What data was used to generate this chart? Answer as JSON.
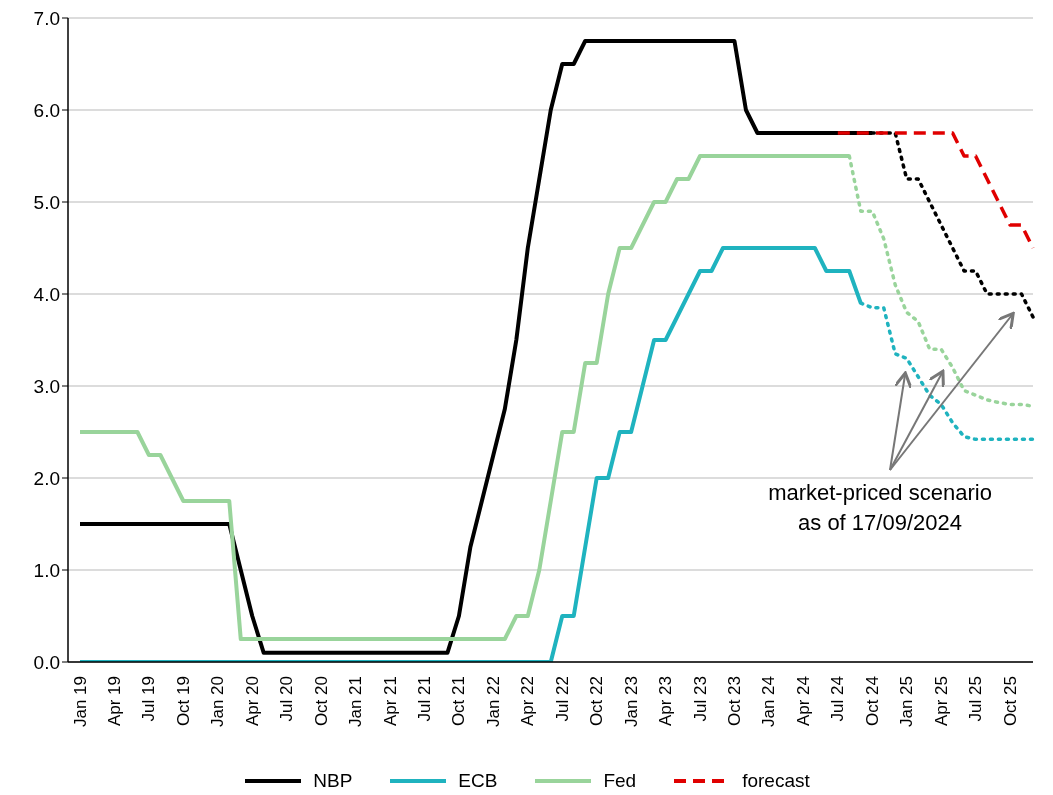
{
  "chart_data": {
    "type": "line",
    "categories": [
      "Jan 19",
      null,
      null,
      "Apr 19",
      null,
      null,
      "Jul 19",
      null,
      null,
      "Oct 19",
      null,
      null,
      "Jan 20",
      null,
      null,
      "Apr 20",
      null,
      null,
      "Jul 20",
      null,
      null,
      "Oct 20",
      null,
      null,
      "Jan 21",
      null,
      null,
      "Apr 21",
      null,
      null,
      "Jul 21",
      null,
      null,
      "Oct 21",
      null,
      null,
      "Jan 22",
      null,
      null,
      "Apr 22",
      null,
      null,
      "Jul 22",
      null,
      null,
      "Oct 22",
      null,
      null,
      "Jan 23",
      null,
      null,
      "Apr 23",
      null,
      null,
      "Jul 23",
      null,
      null,
      "Oct 23",
      null,
      null,
      "Jan 24",
      null,
      null,
      "Apr 24",
      null,
      null,
      "Jul 24",
      null,
      null,
      "Oct 24",
      null,
      null,
      "Jan 25",
      null,
      null,
      "Apr 25",
      null,
      null,
      "Jul 25",
      null,
      null,
      "Oct 25",
      null,
      null
    ],
    "series": [
      {
        "name": "NBP",
        "color": "#000000",
        "line_style": "solid",
        "values": [
          1.5,
          1.5,
          1.5,
          1.5,
          1.5,
          1.5,
          1.5,
          1.5,
          1.5,
          1.5,
          1.5,
          1.5,
          1.5,
          1.5,
          1.0,
          0.5,
          0.1,
          0.1,
          0.1,
          0.1,
          0.1,
          0.1,
          0.1,
          0.1,
          0.1,
          0.1,
          0.1,
          0.1,
          0.1,
          0.1,
          0.1,
          0.1,
          0.1,
          0.5,
          1.25,
          1.75,
          2.25,
          2.75,
          3.5,
          4.5,
          5.25,
          6.0,
          6.5,
          6.5,
          6.75,
          6.75,
          6.75,
          6.75,
          6.75,
          6.75,
          6.75,
          6.75,
          6.75,
          6.75,
          6.75,
          6.75,
          6.75,
          6.75,
          6.0,
          5.75,
          5.75,
          5.75,
          5.75,
          5.75,
          5.75,
          5.75,
          5.75,
          5.75,
          5.75,
          5.75,
          null,
          null,
          null,
          null,
          null,
          null,
          null,
          null,
          null,
          null,
          null,
          null,
          null,
          null
        ]
      },
      {
        "name": "ECB",
        "color": "#1fb3bf",
        "line_style": "solid",
        "values": [
          0,
          0,
          0,
          0,
          0,
          0,
          0,
          0,
          0,
          0,
          0,
          0,
          0,
          0,
          0,
          0,
          0,
          0,
          0,
          0,
          0,
          0,
          0,
          0,
          0,
          0,
          0,
          0,
          0,
          0,
          0,
          0,
          0,
          0,
          0,
          0,
          0,
          0,
          0,
          0,
          0,
          0,
          0.5,
          0.5,
          1.25,
          2.0,
          2.0,
          2.5,
          2.5,
          3.0,
          3.5,
          3.5,
          3.75,
          4.0,
          4.25,
          4.25,
          4.5,
          4.5,
          4.5,
          4.5,
          4.5,
          4.5,
          4.5,
          4.5,
          4.5,
          4.25,
          4.25,
          4.25,
          3.9,
          null,
          null,
          null,
          null,
          null,
          null,
          null,
          null,
          null,
          null,
          null,
          null,
          null,
          null,
          null
        ]
      },
      {
        "name": "Fed",
        "color": "#99d49b",
        "line_style": "solid",
        "values": [
          2.5,
          2.5,
          2.5,
          2.5,
          2.5,
          2.5,
          2.25,
          2.25,
          2.0,
          1.75,
          1.75,
          1.75,
          1.75,
          1.75,
          0.25,
          0.25,
          0.25,
          0.25,
          0.25,
          0.25,
          0.25,
          0.25,
          0.25,
          0.25,
          0.25,
          0.25,
          0.25,
          0.25,
          0.25,
          0.25,
          0.25,
          0.25,
          0.25,
          0.25,
          0.25,
          0.25,
          0.25,
          0.25,
          0.5,
          0.5,
          1.0,
          1.75,
          2.5,
          2.5,
          3.25,
          3.25,
          4.0,
          4.5,
          4.5,
          4.75,
          5.0,
          5.0,
          5.25,
          5.25,
          5.5,
          5.5,
          5.5,
          5.5,
          5.5,
          5.5,
          5.5,
          5.5,
          5.5,
          5.5,
          5.5,
          5.5,
          5.5,
          5.5,
          null,
          null,
          null,
          null,
          null,
          null,
          null,
          null,
          null,
          null,
          null,
          null,
          null,
          null,
          null,
          null
        ]
      },
      {
        "color": "#000000",
        "line_style": "dotted",
        "values": [
          null,
          null,
          null,
          null,
          null,
          null,
          null,
          null,
          null,
          null,
          null,
          null,
          null,
          null,
          null,
          null,
          null,
          null,
          null,
          null,
          null,
          null,
          null,
          null,
          null,
          null,
          null,
          null,
          null,
          null,
          null,
          null,
          null,
          null,
          null,
          null,
          null,
          null,
          null,
          null,
          null,
          null,
          null,
          null,
          null,
          null,
          null,
          null,
          null,
          null,
          null,
          null,
          null,
          null,
          null,
          null,
          null,
          null,
          null,
          null,
          null,
          null,
          null,
          null,
          null,
          null,
          null,
          null,
          null,
          5.75,
          5.75,
          5.75,
          5.25,
          5.25,
          5.0,
          4.75,
          4.5,
          4.25,
          4.25,
          4.0,
          4.0,
          4.0,
          4.0,
          3.75
        ]
      },
      {
        "color": "#1fb3bf",
        "line_style": "dotted",
        "values": [
          null,
          null,
          null,
          null,
          null,
          null,
          null,
          null,
          null,
          null,
          null,
          null,
          null,
          null,
          null,
          null,
          null,
          null,
          null,
          null,
          null,
          null,
          null,
          null,
          null,
          null,
          null,
          null,
          null,
          null,
          null,
          null,
          null,
          null,
          null,
          null,
          null,
          null,
          null,
          null,
          null,
          null,
          null,
          null,
          null,
          null,
          null,
          null,
          null,
          null,
          null,
          null,
          null,
          null,
          null,
          null,
          null,
          null,
          null,
          null,
          null,
          null,
          null,
          null,
          null,
          null,
          null,
          null,
          3.9,
          3.85,
          3.85,
          3.35,
          3.3,
          3.1,
          2.9,
          2.8,
          2.6,
          2.45,
          2.42,
          2.42,
          2.42,
          2.42,
          2.42,
          2.42
        ]
      },
      {
        "color": "#99d49b",
        "line_style": "dotted",
        "values": [
          null,
          null,
          null,
          null,
          null,
          null,
          null,
          null,
          null,
          null,
          null,
          null,
          null,
          null,
          null,
          null,
          null,
          null,
          null,
          null,
          null,
          null,
          null,
          null,
          null,
          null,
          null,
          null,
          null,
          null,
          null,
          null,
          null,
          null,
          null,
          null,
          null,
          null,
          null,
          null,
          null,
          null,
          null,
          null,
          null,
          null,
          null,
          null,
          null,
          null,
          null,
          null,
          null,
          null,
          null,
          null,
          null,
          null,
          null,
          null,
          null,
          null,
          null,
          null,
          null,
          null,
          null,
          5.5,
          4.9,
          4.9,
          4.6,
          4.1,
          3.8,
          3.7,
          3.4,
          3.4,
          3.2,
          2.95,
          2.9,
          2.85,
          2.82,
          2.8,
          2.8,
          2.78
        ]
      },
      {
        "name": "forecast",
        "color": "#e00000",
        "line_style": "dashed",
        "values": [
          null,
          null,
          null,
          null,
          null,
          null,
          null,
          null,
          null,
          null,
          null,
          null,
          null,
          null,
          null,
          null,
          null,
          null,
          null,
          null,
          null,
          null,
          null,
          null,
          null,
          null,
          null,
          null,
          null,
          null,
          null,
          null,
          null,
          null,
          null,
          null,
          null,
          null,
          null,
          null,
          null,
          null,
          null,
          null,
          null,
          null,
          null,
          null,
          null,
          null,
          null,
          null,
          null,
          null,
          null,
          null,
          null,
          null,
          null,
          null,
          null,
          null,
          null,
          null,
          null,
          null,
          5.75,
          5.75,
          5.75,
          5.75,
          5.75,
          5.75,
          5.75,
          5.75,
          5.75,
          5.75,
          5.75,
          5.5,
          5.5,
          5.25,
          5.0,
          4.75,
          4.75,
          4.5
        ]
      }
    ],
    "ylim": [
      0,
      7
    ],
    "yticks": [
      {
        "value": 0,
        "label": "0.0"
      },
      {
        "value": 1,
        "label": "1.0"
      },
      {
        "value": 2,
        "label": "2.0"
      },
      {
        "value": 3,
        "label": "3.0"
      },
      {
        "value": 4,
        "label": "4.0"
      },
      {
        "value": 5,
        "label": "5.0"
      },
      {
        "value": 6,
        "label": "6.0"
      },
      {
        "value": 7,
        "label": "7.0"
      }
    ],
    "grid": "y",
    "legend": "bottom",
    "marker": "none",
    "annotations": [
      "market-priced scenario\nas of 17/09/2024"
    ]
  }
}
